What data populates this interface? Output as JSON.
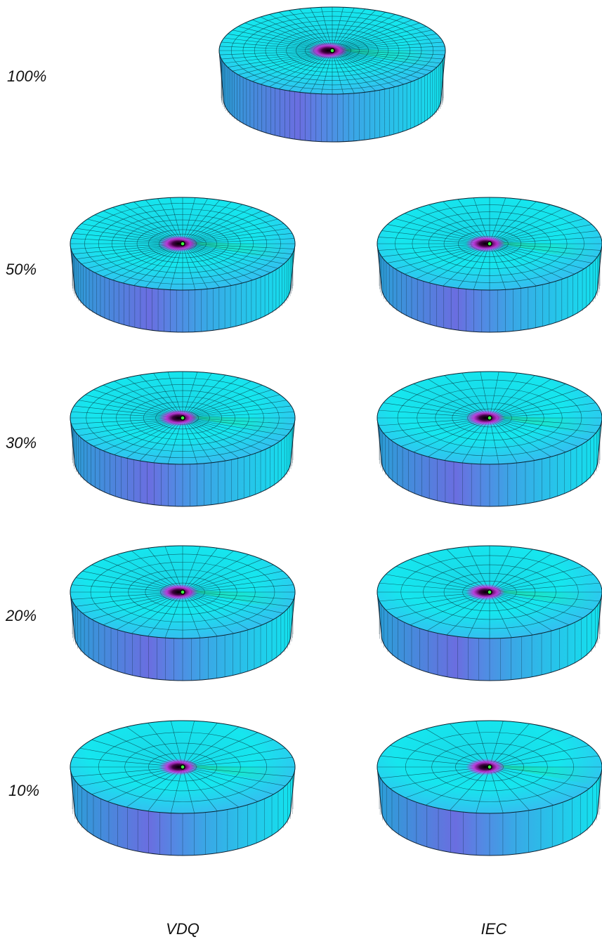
{
  "row_labels": [
    "100%",
    "50%",
    "30%",
    "20%",
    "10%"
  ],
  "column_labels": [
    "VDQ",
    "IEC"
  ]
}
